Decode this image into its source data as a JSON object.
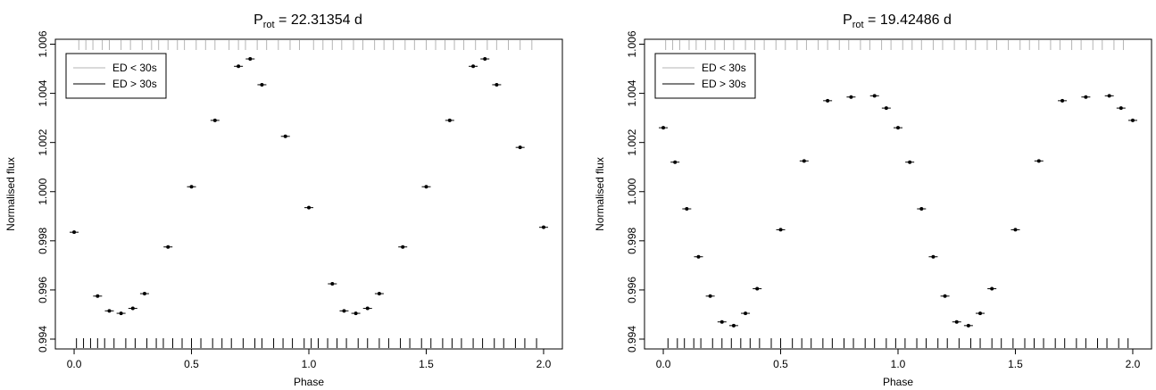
{
  "chart_data": [
    {
      "type": "scatter",
      "title_main": "P",
      "title_sub": "rot",
      "title_rest": " = 22.31354 d",
      "xlabel": "Phase",
      "ylabel": "Normalised flux",
      "xlim": [
        -0.08,
        2.08
      ],
      "ylim": [
        0.9936,
        1.0062
      ],
      "xticks": [
        0.0,
        0.5,
        1.0,
        1.5,
        2.0
      ],
      "xtick_labels": [
        "0.0",
        "0.5",
        "1.0",
        "1.5",
        "2.0"
      ],
      "yticks": [
        0.994,
        0.996,
        0.998,
        1.0,
        1.002,
        1.004,
        1.006
      ],
      "ytick_labels": [
        "0.994",
        "0.996",
        "0.998",
        "1.000",
        "1.002",
        "1.004",
        "1.006"
      ],
      "grid": false,
      "legend_position": "top-left",
      "legend": [
        {
          "label": "ED < 30s",
          "color": "#b4b4b4"
        },
        {
          "label": "ED > 30s",
          "color": "#000000"
        }
      ],
      "series": [
        {
          "name": "",
          "point_color": "#000000",
          "x": [
            0.0,
            0.1,
            0.15,
            0.2,
            0.25,
            0.3,
            0.4,
            0.5,
            0.6,
            0.7,
            0.75,
            0.8,
            0.9,
            1.0,
            1.1,
            1.15,
            1.2,
            1.25,
            1.3,
            1.4,
            1.5,
            1.6,
            1.7,
            1.75,
            1.8,
            1.9,
            2.0
          ],
          "y": [
            0.99835,
            0.99575,
            0.99515,
            0.99505,
            0.99525,
            0.99585,
            0.99775,
            1.0002,
            1.0029,
            1.0051,
            1.0054,
            1.00435,
            1.00225,
            0.99935,
            0.99625,
            0.99515,
            0.99505,
            0.99525,
            0.99585,
            0.99775,
            1.0002,
            1.0029,
            1.0051,
            1.0054,
            1.00435,
            1.0018,
            0.99855
          ]
        }
      ],
      "flares_ed_lt_30s_phase": [
        0.02,
        0.05,
        0.08,
        0.12,
        0.15,
        0.2,
        0.24,
        0.29,
        0.33,
        0.36,
        0.4,
        0.44,
        0.47,
        0.52,
        0.56,
        0.6,
        0.66,
        0.7,
        0.73,
        0.78,
        0.82,
        0.87,
        0.92,
        0.96,
        1.02,
        1.06,
        1.1,
        1.14,
        1.19,
        1.23,
        1.28,
        1.32,
        1.36,
        1.41,
        1.45,
        1.5,
        1.54,
        1.58,
        1.62,
        1.66,
        1.71,
        1.76,
        1.8,
        1.85,
        1.9,
        1.95
      ],
      "flares_ed_gt_30s_phase": [
        0.01,
        0.04,
        0.07,
        0.1,
        0.13,
        0.17,
        0.22,
        0.26,
        0.31,
        0.35,
        0.38,
        0.42,
        0.46,
        0.5,
        0.54,
        0.59,
        0.63,
        0.67,
        0.72,
        0.77,
        0.8,
        0.85,
        0.89,
        0.93,
        0.98,
        1.01,
        1.04,
        1.08,
        1.12,
        1.16,
        1.21,
        1.25,
        1.3,
        1.34,
        1.39,
        1.43,
        1.48,
        1.52,
        1.57,
        1.61,
        1.65,
        1.7,
        1.74,
        1.79,
        1.83,
        1.88,
        1.92,
        1.97
      ]
    },
    {
      "type": "scatter",
      "title_main": "P",
      "title_sub": "rot",
      "title_rest": " = 19.42486 d",
      "xlabel": "Phase",
      "ylabel": "Normalised flux",
      "xlim": [
        -0.08,
        2.08
      ],
      "ylim": [
        0.9936,
        1.0062
      ],
      "xticks": [
        0.0,
        0.5,
        1.0,
        1.5,
        2.0
      ],
      "xtick_labels": [
        "0.0",
        "0.5",
        "1.0",
        "1.5",
        "2.0"
      ],
      "yticks": [
        0.994,
        0.996,
        0.998,
        1.0,
        1.002,
        1.004,
        1.006
      ],
      "ytick_labels": [
        "0.994",
        "0.996",
        "0.998",
        "1.000",
        "1.002",
        "1.004",
        "1.006"
      ],
      "grid": false,
      "legend_position": "top-left",
      "legend": [
        {
          "label": "ED < 30s",
          "color": "#b4b4b4"
        },
        {
          "label": "ED > 30s",
          "color": "#000000"
        }
      ],
      "series": [
        {
          "name": "",
          "point_color": "#000000",
          "x": [
            0.0,
            0.05,
            0.1,
            0.15,
            0.2,
            0.25,
            0.3,
            0.35,
            0.4,
            0.5,
            0.6,
            0.7,
            0.8,
            0.9,
            0.95,
            1.0,
            1.05,
            1.1,
            1.15,
            1.2,
            1.25,
            1.3,
            1.35,
            1.4,
            1.5,
            1.6,
            1.7,
            1.8,
            1.9,
            1.95,
            2.0
          ],
          "y": [
            1.0026,
            1.0012,
            0.9993,
            0.99735,
            0.99575,
            0.9947,
            0.99455,
            0.99505,
            0.99605,
            0.99845,
            1.00125,
            1.0037,
            1.00385,
            1.0039,
            1.0034,
            1.0026,
            1.0012,
            0.9993,
            0.99735,
            0.99575,
            0.9947,
            0.99455,
            0.99505,
            0.99605,
            0.99845,
            1.00125,
            1.0037,
            1.00385,
            1.0039,
            1.0034,
            1.0029
          ]
        }
      ],
      "flares_ed_lt_30s_phase": [
        0.01,
        0.04,
        0.07,
        0.11,
        0.14,
        0.18,
        0.22,
        0.26,
        0.3,
        0.35,
        0.39,
        0.43,
        0.48,
        0.52,
        0.57,
        0.61,
        0.66,
        0.7,
        0.75,
        0.79,
        0.84,
        0.88,
        0.93,
        0.97,
        1.02,
        1.06,
        1.1,
        1.15,
        1.19,
        1.24,
        1.29,
        1.33,
        1.38,
        1.42,
        1.47,
        1.52,
        1.56,
        1.6,
        1.65,
        1.69,
        1.74,
        1.78,
        1.83,
        1.87,
        1.92,
        1.96
      ],
      "flares_ed_gt_30s_phase": [
        0.02,
        0.06,
        0.09,
        0.13,
        0.16,
        0.21,
        0.25,
        0.29,
        0.33,
        0.37,
        0.41,
        0.46,
        0.5,
        0.55,
        0.59,
        0.63,
        0.68,
        0.72,
        0.77,
        0.81,
        0.86,
        0.9,
        0.95,
        0.99,
        1.03,
        1.08,
        1.12,
        1.17,
        1.21,
        1.26,
        1.31,
        1.35,
        1.4,
        1.44,
        1.49,
        1.54,
        1.58,
        1.62,
        1.67,
        1.71,
        1.76,
        1.8,
        1.85,
        1.89,
        1.94,
        1.98
      ]
    }
  ]
}
